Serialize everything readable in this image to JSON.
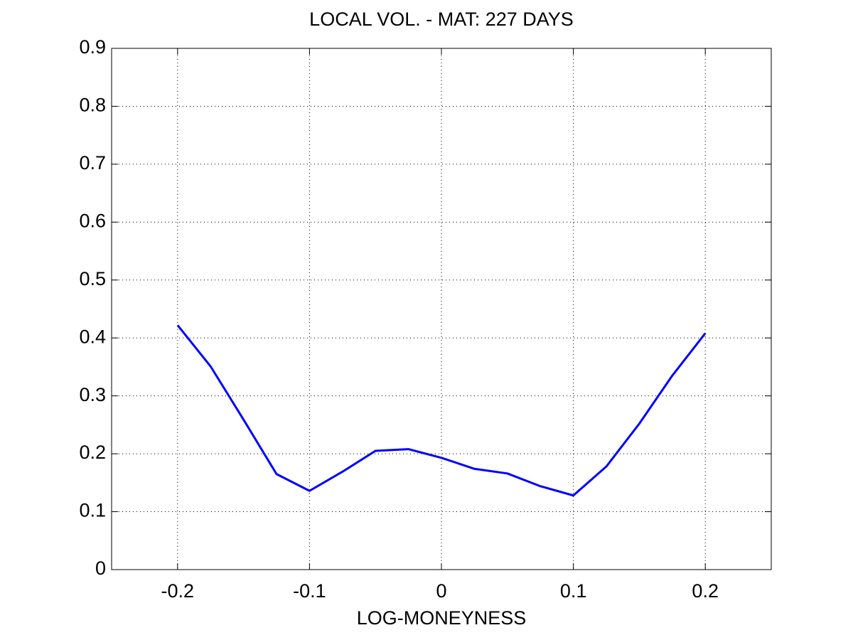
{
  "chart_data": {
    "type": "line",
    "title": "LOCAL VOL. - MAT: 227 DAYS",
    "x_label": "LOG-MONEYNESS",
    "x": [
      -0.2,
      -0.175,
      -0.15,
      -0.125,
      -0.1,
      -0.075,
      -0.05,
      -0.025,
      0,
      0.025,
      0.05,
      0.075,
      0.1,
      0.125,
      0.15,
      0.175,
      0.2
    ],
    "values": [
      0.422,
      0.351,
      0.259,
      0.165,
      0.136,
      0.169,
      0.205,
      0.208,
      0.193,
      0.174,
      0.166,
      0.144,
      0.128,
      0.178,
      0.252,
      0.335,
      0.408
    ],
    "color": "#0000ff",
    "xlim": [
      -0.25,
      0.25
    ],
    "ylim": [
      0,
      0.9
    ],
    "xticks": [
      -0.2,
      -0.1,
      0,
      0.1,
      0.2
    ],
    "yticks": [
      0,
      0.1,
      0.2,
      0.3,
      0.4,
      0.5,
      0.6,
      0.7,
      0.8,
      0.9
    ],
    "grid": true
  }
}
